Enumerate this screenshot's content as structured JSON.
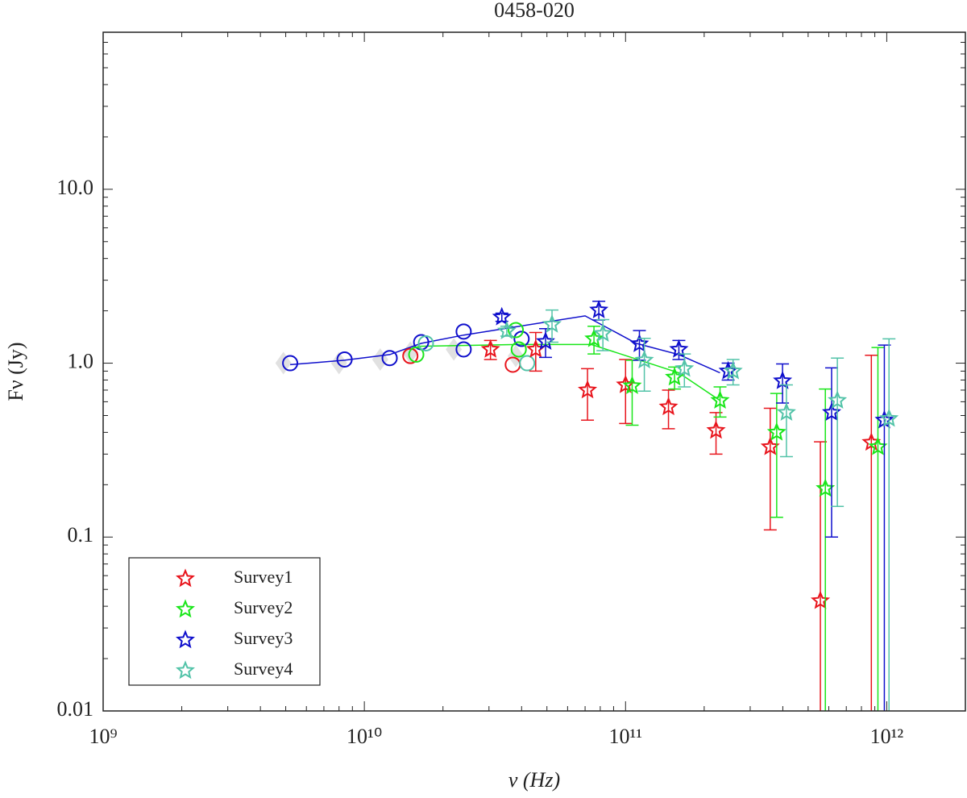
{
  "chart_data": {
    "type": "scatter",
    "title": "0458-020",
    "x_label": "ν (Hz)",
    "y_label": "Fν (Jy)",
    "log_x": true,
    "log_y": true,
    "xlim": [
      1000000000.0,
      2000000000000.0
    ],
    "ylim": [
      0.01,
      80
    ],
    "xticks": [
      {
        "value": 1000000000.0,
        "label": "10⁹"
      },
      {
        "value": 10000000000.0,
        "label": "10¹⁰"
      },
      {
        "value": 100000000000.0,
        "label": "10¹¹"
      },
      {
        "value": 1000000000000.0,
        "label": "10¹²"
      }
    ],
    "xminorticks": [
      2000000000.0,
      3000000000.0,
      4000000000.0,
      5000000000.0,
      6000000000.0,
      7000000000.0,
      8000000000.0,
      9000000000.0,
      20000000000.0,
      30000000000.0,
      40000000000.0,
      50000000000.0,
      60000000000.0,
      70000000000.0,
      80000000000.0,
      90000000000.0,
      200000000000.0,
      300000000000.0,
      400000000000.0,
      500000000000.0,
      600000000000.0,
      700000000000.0,
      800000000000.0,
      900000000000.0
    ],
    "yticks": [
      0.01,
      0.1,
      {
        "value": 1,
        "label": "1.0"
      },
      {
        "value": 10,
        "label": "10.0"
      }
    ],
    "yminorticks": [
      0.02,
      0.03,
      0.04,
      0.05,
      0.06,
      0.07,
      0.08,
      0.09,
      0.2,
      0.3,
      0.4,
      0.5,
      0.6,
      0.7,
      0.8,
      0.9,
      2,
      3,
      4,
      5,
      6,
      7,
      8,
      9,
      20,
      30,
      40,
      50,
      60,
      70
    ],
    "legend": "lower left",
    "series": [
      {
        "marker": "diamond",
        "color": "#d9d9d9",
        "x": [
          4900000000.0,
          8000000000.0,
          11500000000.0,
          15000000000.0,
          22000000000.0,
          38000000000.0
        ],
        "values": [
          1.0,
          1.0,
          1.05,
          1.15,
          1.2,
          1.1
        ]
      },
      {
        "marker": "line",
        "color": "#0f0fcc",
        "x": [
          5200000000.0,
          8400000000.0,
          12500000000.0,
          16500000000.0,
          24000000000.0,
          70000000000.0,
          110000000000.0,
          160000000000.0,
          230000000000.0
        ],
        "values": [
          0.98,
          1.04,
          1.12,
          1.3,
          1.45,
          1.87,
          1.3,
          1.12,
          0.88
        ]
      },
      {
        "marker": "line",
        "color": "#19e619",
        "x": [
          16000000000.0,
          38000000000.0,
          74000000000.0,
          160000000000.0,
          230000000000.0
        ],
        "values": [
          1.25,
          1.28,
          1.28,
          0.88,
          0.61
        ]
      },
      {
        "marker": "circle",
        "color": "#0f0fcc",
        "x": [
          5200000000.0,
          8400000000.0,
          12500000000.0,
          16500000000.0,
          24000000000.0,
          24000000000.0,
          40000000000.0
        ],
        "values": [
          1.0,
          1.05,
          1.07,
          1.32,
          1.52,
          1.2,
          1.38
        ]
      },
      {
        "marker": "circle",
        "color": "#e8141c",
        "x": [
          15000000000.0,
          37000000000.0
        ],
        "values": [
          1.1,
          0.98
        ]
      },
      {
        "marker": "circle",
        "color": "#19e619",
        "x": [
          15800000000.0,
          38000000000.0,
          39000000000.0
        ],
        "values": [
          1.12,
          1.55,
          1.2
        ]
      },
      {
        "marker": "circle",
        "color": "#52c3a8",
        "x": [
          17200000000.0,
          42000000000.0
        ],
        "values": [
          1.3,
          1.0
        ]
      },
      {
        "name": "Survey1",
        "marker": "star",
        "color": "#e8141c",
        "x": [
          30400000000.0,
          45300000000.0,
          71500000000.0,
          100000000000.0,
          146000000000.0,
          222000000000.0,
          358000000000.0,
          557000000000.0,
          873000000000.0
        ],
        "values": [
          1.2,
          1.2,
          0.7,
          0.75,
          0.56,
          0.41,
          0.33,
          0.043,
          0.35
        ],
        "errors": [
          0.15,
          0.3,
          0.23,
          0.3,
          0.14,
          0.11,
          0.22,
          0.31,
          0.76
        ]
      },
      {
        "name": "Survey2",
        "marker": "star",
        "color": "#19e619",
        "x": [
          75700000000.0,
          106000000000.0,
          154000000000.0,
          230000000000.0,
          379000000000.0,
          582000000000.0,
          925000000000.0
        ],
        "values": [
          1.38,
          0.74,
          0.83,
          0.61,
          0.4,
          0.19,
          0.33
        ],
        "errors": [
          0.25,
          0.3,
          0.12,
          0.12,
          0.27,
          0.52,
          0.9
        ]
      },
      {
        "name": "Survey3",
        "marker": "star",
        "color": "#0f0fcc",
        "x": [
          33600000000.0,
          49400000000.0,
          79000000000.0,
          113000000000.0,
          160000000000.0,
          247000000000.0,
          399000000000.0,
          615000000000.0,
          979000000000.0
        ],
        "values": [
          1.84,
          1.33,
          2.02,
          1.29,
          1.2,
          0.9,
          0.79,
          0.52,
          0.47
        ],
        "errors": [
          0.1,
          0.25,
          0.25,
          0.25,
          0.15,
          0.1,
          0.2,
          0.42,
          0.8
        ]
      },
      {
        "name": "Survey4",
        "marker": "star",
        "color": "#52c3a8",
        "x": [
          35100000000.0,
          52300000000.0,
          81900000000.0,
          118000000000.0,
          168000000000.0,
          258000000000.0,
          413000000000.0,
          647000000000.0,
          1020000000000.0
        ],
        "values": [
          1.53,
          1.67,
          1.48,
          1.04,
          0.93,
          0.9,
          0.52,
          0.61,
          0.48
        ],
        "errors": [
          0.1,
          0.35,
          0.3,
          0.35,
          0.2,
          0.15,
          0.23,
          0.46,
          0.9
        ]
      }
    ]
  }
}
